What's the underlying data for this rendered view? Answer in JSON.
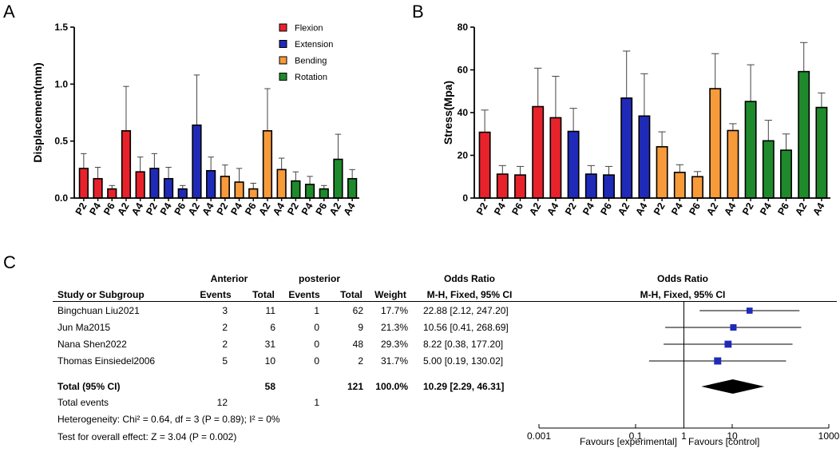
{
  "panels": {
    "a": "A",
    "b": "B",
    "c": "C"
  },
  "chart_data": [
    {
      "type": "bar",
      "panel": "A",
      "ylabel": "Displacement(mm)",
      "ylim": [
        0,
        1.5
      ],
      "yticks": [
        0,
        0.5,
        1.0,
        1.5
      ],
      "ytick_labels": [
        "0.0",
        "0.5",
        "1.0",
        "1.5"
      ],
      "categories": [
        "P2",
        "P4",
        "P6",
        "A2",
        "A4",
        "P2",
        "P4",
        "P6",
        "A2",
        "A4",
        "P2",
        "P4",
        "P6",
        "A2",
        "A4",
        "P2",
        "P4",
        "P6",
        "A2",
        "A4"
      ],
      "values": [
        0.26,
        0.17,
        0.08,
        0.59,
        0.23,
        0.26,
        0.17,
        0.08,
        0.64,
        0.24,
        0.19,
        0.14,
        0.08,
        0.59,
        0.25,
        0.15,
        0.12,
        0.08,
        0.34,
        0.17
      ],
      "errors": [
        0.13,
        0.1,
        0.03,
        0.39,
        0.13,
        0.13,
        0.1,
        0.03,
        0.44,
        0.12,
        0.1,
        0.12,
        0.05,
        0.37,
        0.1,
        0.08,
        0.07,
        0.03,
        0.22,
        0.08
      ],
      "colors": [
        "#e8222b",
        "#e8222b",
        "#e8222b",
        "#e8222b",
        "#e8222b",
        "#1f2bb8",
        "#1f2bb8",
        "#1f2bb8",
        "#1f2bb8",
        "#1f2bb8",
        "#f79a3a",
        "#f79a3a",
        "#f79a3a",
        "#f79a3a",
        "#f79a3a",
        "#1e8a2c",
        "#1e8a2c",
        "#1e8a2c",
        "#1e8a2c",
        "#1e8a2c"
      ],
      "legend": [
        {
          "label": "Flexion",
          "color": "#e8222b"
        },
        {
          "label": "Extension",
          "color": "#1f2bb8"
        },
        {
          "label": "Bending",
          "color": "#f79a3a"
        },
        {
          "label": "Rotation",
          "color": "#1e8a2c"
        }
      ]
    },
    {
      "type": "bar",
      "panel": "B",
      "ylabel": "Stress(Mpa)",
      "ylim": [
        0,
        80
      ],
      "yticks": [
        0,
        20,
        40,
        60,
        80
      ],
      "ytick_labels": [
        "0",
        "20",
        "40",
        "60",
        "80"
      ],
      "categories": [
        "P2",
        "P4",
        "P6",
        "A2",
        "A4",
        "P2",
        "P4",
        "P6",
        "A2",
        "A4",
        "P2",
        "P4",
        "P6",
        "A2",
        "A4",
        "P2",
        "P4",
        "P6",
        "A2",
        "A4"
      ],
      "values": [
        30.8,
        11.2,
        10.8,
        42.8,
        37.6,
        31.2,
        11.2,
        10.8,
        46.8,
        38.4,
        24.0,
        12.0,
        10.0,
        51.2,
        31.6,
        45.2,
        26.8,
        22.4,
        59.2,
        42.4
      ],
      "errors": [
        10.4,
        4.0,
        4.0,
        18.0,
        19.4,
        10.8,
        4.0,
        4.0,
        22.0,
        19.8,
        7.0,
        3.6,
        2.4,
        16.4,
        3.2,
        17.2,
        9.6,
        7.6,
        13.6,
        6.8
      ],
      "colors": [
        "#e8222b",
        "#e8222b",
        "#e8222b",
        "#e8222b",
        "#e8222b",
        "#1f2bb8",
        "#1f2bb8",
        "#1f2bb8",
        "#1f2bb8",
        "#1f2bb8",
        "#f79a3a",
        "#f79a3a",
        "#f79a3a",
        "#f79a3a",
        "#f79a3a",
        "#1e8a2c",
        "#1e8a2c",
        "#1e8a2c",
        "#1e8a2c",
        "#1e8a2c"
      ]
    },
    {
      "type": "forest",
      "panel": "C",
      "header": {
        "group1": "Anterior",
        "group2": "posterior",
        "study": "Study or Subgroup",
        "events": "Events",
        "total": "Total",
        "weight": "Weight",
        "or_title": "Odds Ratio",
        "or_method": "M-H, Fixed, 95% CI",
        "plot_title": "Odds Ratio",
        "plot_method": "M-H, Fixed, 95% CI"
      },
      "studies": [
        {
          "name": "Bingchuan Liu2021",
          "ev1": "3",
          "tot1": "11",
          "ev2": "1",
          "tot2": "62",
          "weight": "17.7%",
          "ci_text": "22.88 [2.12, 247.20]",
          "or": 22.88,
          "lo": 2.12,
          "hi": 247.2
        },
        {
          "name": "Jun Ma2015",
          "ev1": "2",
          "tot1": "6",
          "ev2": "0",
          "tot2": "9",
          "weight": "21.3%",
          "ci_text": "10.56 [0.41, 268.69]",
          "or": 10.56,
          "lo": 0.41,
          "hi": 268.69
        },
        {
          "name": "Nana Shen2022",
          "ev1": "2",
          "tot1": "31",
          "ev2": "0",
          "tot2": "48",
          "weight": "29.3%",
          "ci_text": "8.22 [0.38, 177.20]",
          "or": 8.22,
          "lo": 0.38,
          "hi": 177.2
        },
        {
          "name": "Thomas Einsiedel2006",
          "ev1": "5",
          "tot1": "10",
          "ev2": "0",
          "tot2": "2",
          "weight": "31.7%",
          "ci_text": "5.00 [0.19, 130.02]",
          "or": 5.0,
          "lo": 0.19,
          "hi": 130.02
        }
      ],
      "total": {
        "label": "Total (95% CI)",
        "tot1": "58",
        "tot2": "121",
        "weight": "100.0%",
        "ci_text": "10.29 [2.29, 46.31]",
        "or": 10.29,
        "lo": 2.29,
        "hi": 46.31
      },
      "total_events": {
        "label": "Total events",
        "ev1": "12",
        "ev2": "1"
      },
      "heterogeneity": "Heterogeneity: Chi² = 0.64, df = 3 (P = 0.89); I² = 0%",
      "overall_effect": "Test for overall effect: Z = 3.04 (P = 0.002)",
      "xaxis": {
        "type": "log",
        "min": 0.001,
        "max": 1000,
        "ticks": [
          0.001,
          0.1,
          1,
          10,
          1000
        ],
        "tick_labels": [
          "0.001",
          "0.1",
          "1",
          "10",
          "1000"
        ]
      },
      "favours_left": "Favours [experimental]",
      "favours_right": "Favours [control]"
    }
  ]
}
